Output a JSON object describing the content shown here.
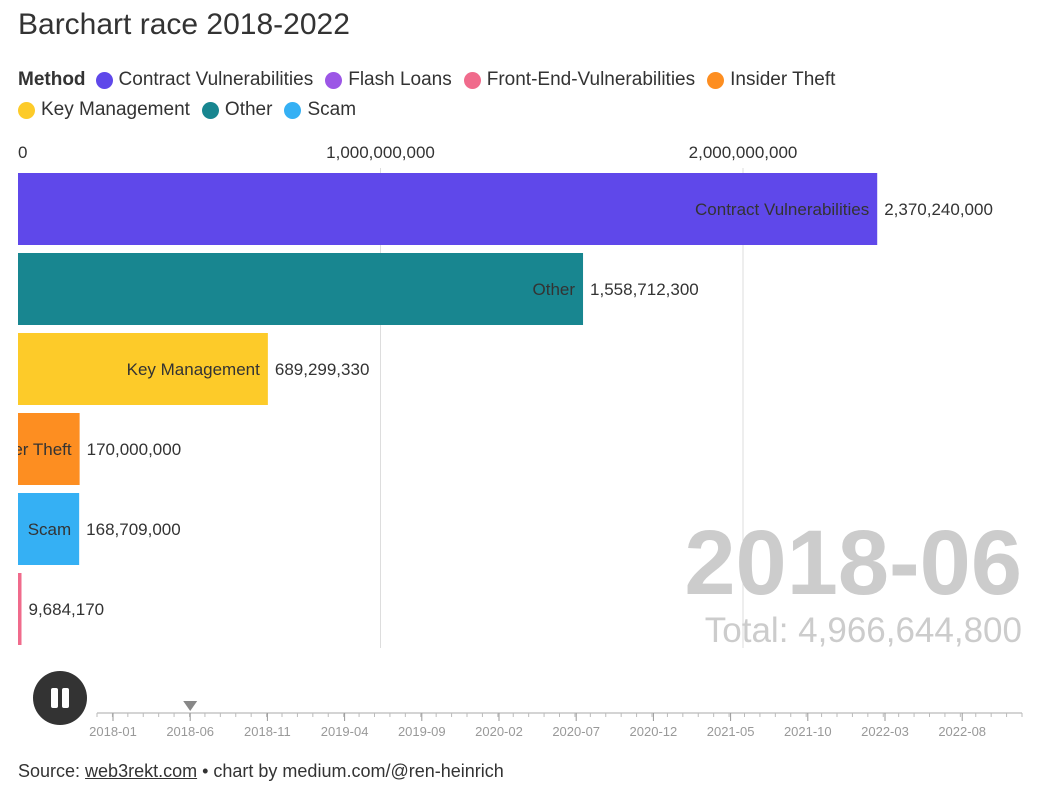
{
  "title": "Barchart race 2018-2022",
  "legend": {
    "title": "Method",
    "items": [
      {
        "label": "Contract Vulnerabilities",
        "color": "#5f48ea"
      },
      {
        "label": "Flash Loans",
        "color": "#9c56e6"
      },
      {
        "label": "Front-End-Vulnerabilities",
        "color": "#f06b8c"
      },
      {
        "label": "Insider Theft",
        "color": "#fd8e21"
      },
      {
        "label": "Key Management",
        "color": "#fdcb29"
      },
      {
        "label": "Other",
        "color": "#188690"
      },
      {
        "label": "Scam",
        "color": "#35b0f4"
      }
    ]
  },
  "chart_data": {
    "type": "bar",
    "orientation": "horizontal",
    "period": "2018-06",
    "total_label": "Total: 4,966,644,800",
    "categories": [
      "Contract Vulnerabilities",
      "Other",
      "Key Management",
      "Insider Theft",
      "Scam",
      "Front-End-Vulnerabilities"
    ],
    "values": [
      2370240000,
      1558712300,
      689299330,
      170000000,
      168709000,
      9684170
    ],
    "value_labels": [
      "2,370,240,000",
      "1,558,712,300",
      "689,299,330",
      "170,000,000",
      "168,709,000",
      "9,684,170"
    ],
    "bar_labels": [
      "Contract Vulnerabilities",
      "Other",
      "Key Management",
      "Insider Theft",
      "Scam",
      ""
    ],
    "colors": [
      "#5f48ea",
      "#188690",
      "#fdcb29",
      "#fd8e21",
      "#35b0f4",
      "#f06b8c"
    ],
    "xlim": [
      0,
      2700000000
    ],
    "x_ticks": [
      0,
      1000000000,
      2000000000
    ],
    "x_tick_labels": [
      "0",
      "1,000,000,000",
      "2,000,000,000"
    ],
    "grid": true
  },
  "timeline": {
    "ticks": [
      "2018-01",
      "2018-06",
      "2018-11",
      "2019-04",
      "2019-09",
      "2020-02",
      "2020-07",
      "2020-12",
      "2021-05",
      "2021-10",
      "2022-03",
      "2022-08"
    ],
    "current": "2018-06"
  },
  "footer": {
    "prefix": "Source: ",
    "link": "web3rekt.com",
    "suffix": " • chart by medium.com/@ren-heinrich"
  }
}
